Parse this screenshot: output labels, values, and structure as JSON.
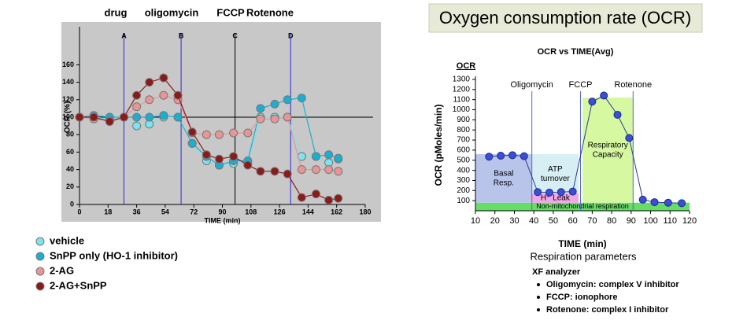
{
  "banner": "Oxygen consumption rate (OCR)",
  "caption": "Respiration parameters",
  "notes": {
    "title": "XF analyzer",
    "items": [
      "Oligomycin: complex V inhibitor",
      "FCCP: ionophore",
      "Rotenone: complex I inhibitor"
    ]
  },
  "chart_data": [
    {
      "type": "line",
      "header_labels": [
        {
          "text": "drug",
          "color": "#d06a6a"
        },
        {
          "text": "oligomycin",
          "color": "#1a1a8c"
        },
        {
          "text": "FCCP",
          "color": "#1a1ad6"
        },
        {
          "text": "Rotenone",
          "color": "#1a1ad6"
        }
      ],
      "xlabel": "TIME (min)",
      "ylabel": "OCR (%)",
      "xlim": [
        0,
        180
      ],
      "xticks": [
        0,
        18,
        36,
        54,
        72,
        90,
        108,
        126,
        144,
        162,
        180
      ],
      "ylim": [
        0,
        200
      ],
      "yticks": [
        0,
        20,
        40,
        60,
        80,
        100,
        120,
        140,
        160
      ],
      "hline": 100,
      "background": "#c8c8c8",
      "events": [
        {
          "label": "A",
          "x": 28
        },
        {
          "label": "B",
          "x": 64
        },
        {
          "label": "C",
          "x": 98
        },
        {
          "label": "D",
          "x": 133
        }
      ],
      "x": [
        0,
        9,
        19,
        28,
        36,
        44,
        53,
        62,
        71,
        80,
        88,
        97,
        106,
        114,
        123,
        131,
        140,
        149,
        157,
        163
      ],
      "series": [
        {
          "name": "vehicle",
          "color": "#7ee3ee",
          "values": [
            100,
            100,
            98,
            100,
            90,
            92,
            100,
            100,
            70,
            50,
            45,
            47,
            48,
            100,
            100,
            100,
            55,
            55,
            48,
            52
          ]
        },
        {
          "name": "SnPP only (HO-1 inhibitor)",
          "color": "#1aaed0",
          "values": [
            100,
            102,
            100,
            100,
            100,
            100,
            102,
            100,
            70,
            55,
            45,
            50,
            50,
            110,
            115,
            120,
            122,
            55,
            57,
            53
          ]
        },
        {
          "name": "2-AG",
          "color": "#e89595",
          "values": [
            100,
            98,
            96,
            100,
            112,
            120,
            125,
            120,
            82,
            80,
            80,
            82,
            82,
            98,
            98,
            100,
            40,
            40,
            40,
            38
          ]
        },
        {
          "name": "2-AG+SnPP",
          "color": "#8b1a1a",
          "values": [
            100,
            100,
            95,
            100,
            125,
            140,
            145,
            125,
            83,
            57,
            52,
            55,
            45,
            38,
            38,
            35,
            8,
            12,
            5,
            7
          ]
        }
      ]
    },
    {
      "type": "line",
      "title": "OCR vs TIME(Avg)",
      "y_unit_label": "OCR",
      "xlabel": "TIME (min)",
      "ylabel": "OCR (pMoles/min)",
      "xlim": [
        10,
        120
      ],
      "xticks": [
        10,
        20,
        30,
        40,
        50,
        60,
        70,
        80,
        90,
        100,
        110,
        120
      ],
      "ylim": [
        0,
        1300
      ],
      "yticks": [
        100,
        200,
        300,
        400,
        500,
        600,
        700,
        800,
        900,
        1000,
        1100,
        1200,
        1300
      ],
      "regions": [
        {
          "label": [
            "Non-mitochondrial respiration"
          ],
          "x": [
            10,
            120
          ],
          "y": [
            0,
            80
          ],
          "color": "#66dd66"
        },
        {
          "label": [
            "Basal",
            "Resp."
          ],
          "x": [
            10,
            39
          ],
          "y": [
            80,
            560
          ],
          "color": "#b8c4ea"
        },
        {
          "label": [
            "ATP",
            "turnover"
          ],
          "x": [
            39,
            63
          ],
          "y": [
            170,
            560
          ],
          "color": "#d6eef4"
        },
        {
          "label": [
            "H⁺ Leak"
          ],
          "x": [
            39,
            63
          ],
          "y": [
            80,
            170
          ],
          "color": "#f2a6e6"
        },
        {
          "label": [
            "Respiratory",
            "Capacity"
          ],
          "x": [
            65,
            91
          ],
          "y": [
            80,
            1120
          ],
          "color": "#d6f8a0"
        }
      ],
      "events": [
        {
          "label": "Oligomycin",
          "x": 39
        },
        {
          "label": "FCCP",
          "x": 64
        },
        {
          "label": "Rotenone",
          "x": 91
        }
      ],
      "x": [
        17,
        23,
        29,
        35,
        42,
        48,
        54,
        60,
        70,
        76,
        83,
        89,
        96,
        102,
        109,
        116
      ],
      "series": [
        {
          "color": "#3b4fd6",
          "values": [
            535,
            545,
            550,
            540,
            185,
            180,
            185,
            190,
            1080,
            1140,
            950,
            720,
            110,
            85,
            80,
            75
          ]
        }
      ]
    }
  ]
}
